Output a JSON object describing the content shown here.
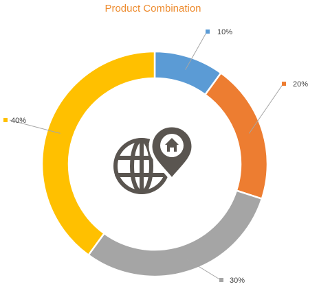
{
  "chart_data": {
    "type": "pie",
    "title": "Product Combination",
    "slices": [
      {
        "label": "10%",
        "value": 10,
        "color": "#5B9BD5"
      },
      {
        "label": "20%",
        "value": 20,
        "color": "#ED7D31"
      },
      {
        "label": "30%",
        "value": 30,
        "color": "#A5A5A5"
      },
      {
        "label": "40%",
        "value": 40,
        "color": "#FFC000"
      }
    ]
  },
  "icon": {
    "name": "globe-location-pin-home-icon",
    "color": "#5A5550"
  }
}
